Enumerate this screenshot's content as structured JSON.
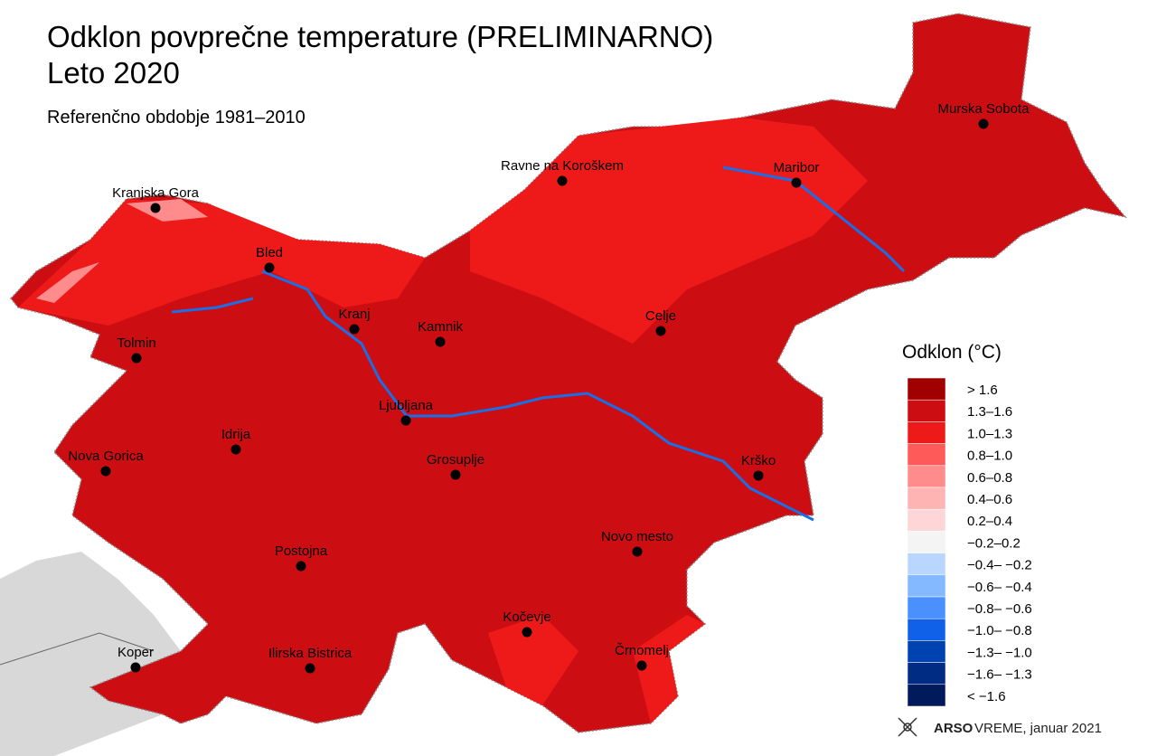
{
  "header": {
    "title": "Odklon povprečne temperature (PRELIMINARNO)",
    "title_line2": "Leto 2020",
    "subtitle": "Referenčno obdobje 1981–2010"
  },
  "cities": [
    "Murska Sobota",
    "Ravne na Koroškem",
    "Maribor",
    "Kranjska Gora",
    "Bled",
    "Kranj",
    "Kamnik",
    "Celje",
    "Tolmin",
    "Ljubljana",
    "Idrija",
    "Nova Gorica",
    "Grosuplje",
    "Krško",
    "Novo mesto",
    "Postojna",
    "Kočevje",
    "Koper",
    "Ilirska Bistrica",
    "Črnomelj"
  ],
  "legend": {
    "title": "Odklon (°C)",
    "entries": [
      {
        "label": "> 1.6",
        "color": "#a00000"
      },
      {
        "label": "1.3–1.6",
        "color": "#cc0e12"
      },
      {
        "label": "1.0–1.3",
        "color": "#ee1a1a"
      },
      {
        "label": "0.8–1.0",
        "color": "#ff5a5a"
      },
      {
        "label": "0.6–0.8",
        "color": "#ff8c8c"
      },
      {
        "label": "0.4–0.6",
        "color": "#ffb4b4"
      },
      {
        "label": "0.2–0.4",
        "color": "#ffd6d8"
      },
      {
        "label": "−0.2–0.2",
        "color": "#f4f4f4"
      },
      {
        "label": "−0.4– −0.2",
        "color": "#b8d6ff"
      },
      {
        "label": "−0.6– −0.4",
        "color": "#84b8ff"
      },
      {
        "label": "−0.8– −0.6",
        "color": "#4a90ff"
      },
      {
        "label": "−1.0– −0.8",
        "color": "#1060e8"
      },
      {
        "label": "−1.3– −1.0",
        "color": "#0042b0"
      },
      {
        "label": "−1.6– −1.3",
        "color": "#002c84"
      },
      {
        "label": "< −1.6",
        "color": "#001a5c"
      }
    ]
  },
  "footer": {
    "brand": "ARSO",
    "brand_sub": "VREME, januar 2021"
  }
}
